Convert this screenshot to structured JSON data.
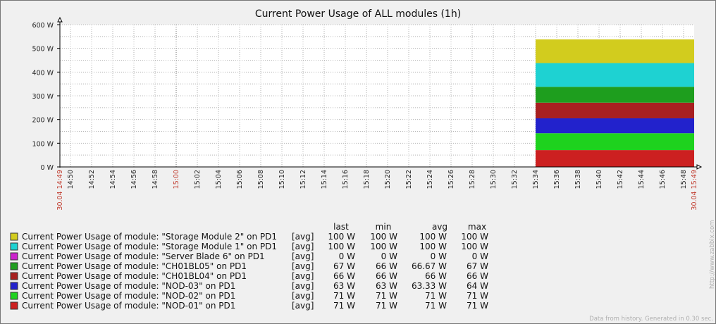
{
  "chart_data": {
    "type": "area",
    "title": "Current Power Usage of ALL modules (1h)",
    "y_unit": "W",
    "ylim": [
      0,
      600
    ],
    "y_ticks": [
      "0 W",
      "100 W",
      "200 W",
      "300 W",
      "400 W",
      "500 W",
      "600 W"
    ],
    "x_range": [
      "14:49",
      "15:49"
    ],
    "x_ticks": [
      "14:50",
      "14:52",
      "14:54",
      "14:56",
      "14:58",
      "15:00",
      "15:02",
      "15:04",
      "15:06",
      "15:08",
      "15:10",
      "15:12",
      "15:14",
      "15:16",
      "15:18",
      "15:20",
      "15:22",
      "15:24",
      "15:26",
      "15:28",
      "15:30",
      "15:32",
      "15:34",
      "15:36",
      "15:38",
      "15:40",
      "15:42",
      "15:44",
      "15:46",
      "15:48"
    ],
    "x_highlight_ticks": [
      "15:00"
    ],
    "x_start_label": "30.04 14:49",
    "x_end_label": "30.04 15:49",
    "stacked": true,
    "data_start": "15:34",
    "grid": true,
    "legend_headers": [
      "last",
      "min",
      "avg",
      "max"
    ],
    "series": [
      {
        "name": "Current Power Usage of module: \"NOD-01\" on PD1",
        "color": "#cc2020",
        "func": "[avg]",
        "last": "71 W",
        "min": "71 W",
        "avg": "71 W",
        "max": "71 W",
        "value": 71
      },
      {
        "name": "Current Power Usage of module: \"NOD-02\" on PD1",
        "color": "#1ed21e",
        "func": "[avg]",
        "last": "71 W",
        "min": "71 W",
        "avg": "71 W",
        "max": "71 W",
        "value": 71
      },
      {
        "name": "Current Power Usage of module: \"NOD-03\" on PD1",
        "color": "#2222cc",
        "func": "[avg]",
        "last": "63 W",
        "min": "63 W",
        "avg": "63.33 W",
        "max": "64 W",
        "value": 63
      },
      {
        "name": "Current Power Usage of module: \"CH01BL04\" on PD1",
        "color": "#a82020",
        "func": "[avg]",
        "last": "66 W",
        "min": "66 W",
        "avg": "66 W",
        "max": "66 W",
        "value": 66
      },
      {
        "name": "Current Power Usage of module: \"CH01BL05\" on PD1",
        "color": "#1e9e1e",
        "func": "[avg]",
        "last": "67 W",
        "min": "66 W",
        "avg": "66.67 W",
        "max": "67 W",
        "value": 67
      },
      {
        "name": "Current Power Usage of module: \"Server Blade 6\" on PD1",
        "color": "#cc22cc",
        "func": "[avg]",
        "last": "0 W",
        "min": "0 W",
        "avg": "0 W",
        "max": "0 W",
        "value": 0
      },
      {
        "name": "Current Power Usage of module: \"Storage Module 1\" on PD1",
        "color": "#1ed2d2",
        "func": "[avg]",
        "last": "100 W",
        "min": "100 W",
        "avg": "100 W",
        "max": "100 W",
        "value": 100
      },
      {
        "name": "Current Power Usage of module: \"Storage Module 2\" on PD1",
        "color": "#d2cc1e",
        "func": "[avg]",
        "last": "100 W",
        "min": "100 W",
        "avg": "100 W",
        "max": "100 W",
        "value": 100
      }
    ]
  },
  "side_text": "http://www.zabbix.com",
  "footer_text": "Data from history. Generated in 0.30 sec."
}
